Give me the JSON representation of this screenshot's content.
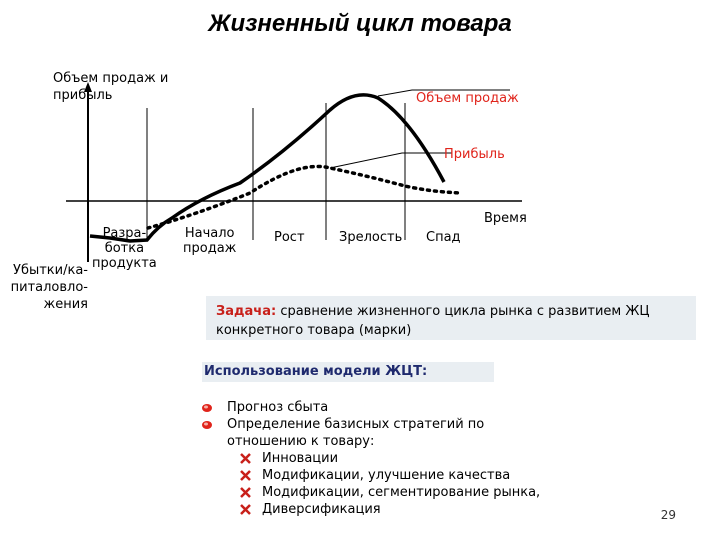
{
  "title": "Жизненный цикл товара",
  "axis": {
    "y_label_line1": "Объем продаж и",
    "y_label_line2": "прибыль",
    "x_label": "Время"
  },
  "legend": {
    "sales": "Объем продаж",
    "profit": "Прибыль"
  },
  "stages": [
    {
      "line1": "Разра-",
      "line2": "ботка",
      "line3": "продукта"
    },
    {
      "line1": "Начало",
      "line2": "продаж"
    },
    {
      "line1": "Рост"
    },
    {
      "line1": "Зрелость"
    },
    {
      "line1": "Спад"
    }
  ],
  "loss_label": {
    "line1": "Убытки/ка-",
    "line2": "питаловло-",
    "line3": "жения"
  },
  "task": {
    "prefix": "Задача:",
    "text": " сравнение жизненного цикла рынка с развитием ЖЦ конкретного товара (марки)"
  },
  "usage_heading": "Использование модели ЖЦТ:",
  "bullets": [
    "Прогноз сбыта",
    "Определение базисных стратегий по",
    "отношению к товару:"
  ],
  "sub_bullets": [
    "Инновации",
    "Модификации, улучшение качества",
    "Модификации, сегментирование рынка,",
    "Диверсификация"
  ],
  "colors": {
    "accent_red": "#e0241b",
    "box_bg": "#e9eef2"
  },
  "page_number": "29"
}
